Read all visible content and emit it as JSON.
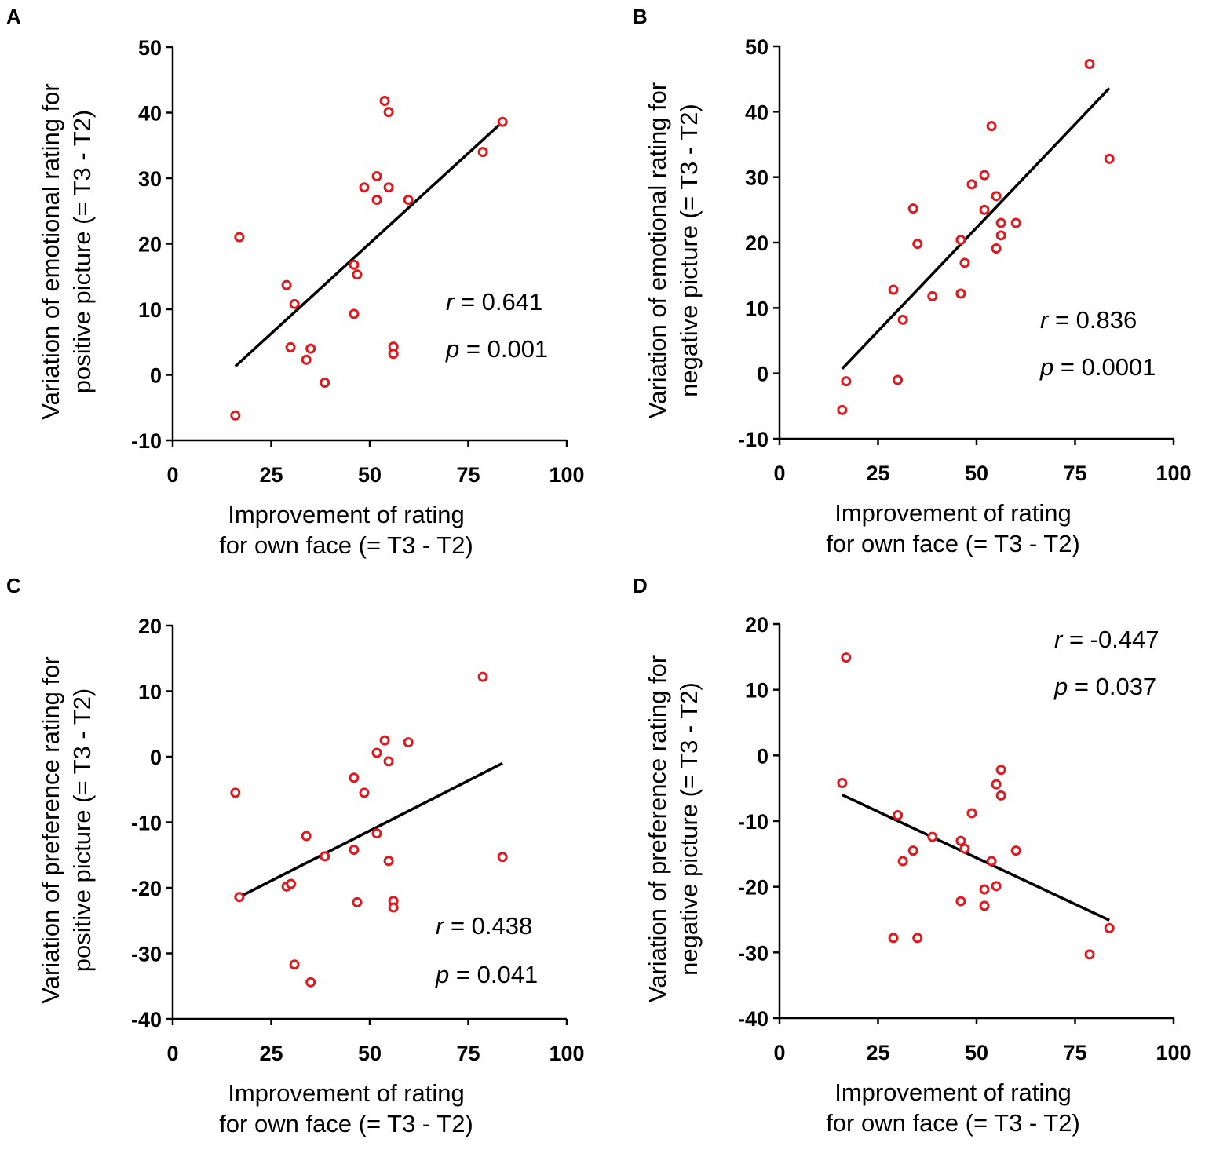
{
  "chart_data": [
    {
      "panel": "A",
      "type": "scatter",
      "xlabel": [
        "Improvement of rating",
        "for own face (= T3 - T2)"
      ],
      "ylabel": [
        "Variation of emotional rating for",
        "positive picture (= T3 - T2)"
      ],
      "xlim": [
        0,
        100
      ],
      "ylim": [
        -10,
        50
      ],
      "xticks": [
        0,
        25,
        50,
        75,
        100
      ],
      "yticks": [
        -10,
        0,
        10,
        20,
        30,
        40,
        50
      ],
      "points": [
        [
          15.9,
          -6.2
        ],
        [
          16.9,
          21
        ],
        [
          28.9,
          13.7
        ],
        [
          30.9,
          10.8
        ],
        [
          29.9,
          4.2
        ],
        [
          33.9,
          2.3
        ],
        [
          35,
          4
        ],
        [
          38.6,
          -1.2
        ],
        [
          46,
          16.8
        ],
        [
          46.8,
          15.3
        ],
        [
          46,
          9.3
        ],
        [
          48.6,
          28.6
        ],
        [
          51.8,
          30.3
        ],
        [
          51.8,
          26.7
        ],
        [
          53.8,
          41.8
        ],
        [
          54.8,
          40.1
        ],
        [
          54.8,
          28.6
        ],
        [
          56,
          4.3
        ],
        [
          56,
          3.2
        ],
        [
          59.8,
          26.7
        ],
        [
          78.7,
          34
        ],
        [
          83.7,
          38.6
        ]
      ],
      "fit_line": [
        [
          15.9,
          1.3
        ],
        [
          83.7,
          38.6
        ]
      ],
      "r": "0.641",
      "p": "0.001",
      "stat_pos": "right-middle"
    },
    {
      "panel": "B",
      "type": "scatter",
      "xlabel": [
        "Improvement of rating",
        "for own face (= T3 - T2)"
      ],
      "ylabel": [
        "Variation of emotional rating for",
        "negative picture (= T3 - T2)"
      ],
      "xlim": [
        0,
        100
      ],
      "ylim": [
        -10,
        50
      ],
      "xticks": [
        0,
        25,
        50,
        75,
        100
      ],
      "yticks": [
        -10,
        0,
        10,
        20,
        30,
        40,
        50
      ],
      "points": [
        [
          15.9,
          -5.6
        ],
        [
          16.9,
          -1.2
        ],
        [
          28.9,
          12.8
        ],
        [
          30,
          -1
        ],
        [
          31.3,
          8.2
        ],
        [
          33.9,
          25.2
        ],
        [
          35,
          19.8
        ],
        [
          38.8,
          11.8
        ],
        [
          46,
          20.4
        ],
        [
          46,
          12.2
        ],
        [
          47,
          16.9
        ],
        [
          48.8,
          28.9
        ],
        [
          52,
          30.3
        ],
        [
          52,
          25
        ],
        [
          53.8,
          37.8
        ],
        [
          55,
          27.1
        ],
        [
          55,
          19.1
        ],
        [
          56.2,
          23
        ],
        [
          56.2,
          21.1
        ],
        [
          60,
          23
        ],
        [
          78.7,
          47.3
        ],
        [
          83.7,
          32.8
        ]
      ],
      "fit_line": [
        [
          15.9,
          0.7
        ],
        [
          83.7,
          43.6
        ]
      ],
      "r": "0.836",
      "p": "0.0001",
      "stat_pos": "right-middle"
    },
    {
      "panel": "C",
      "type": "scatter",
      "xlabel": [
        "Improvement of rating",
        "for own face (= T3 - T2)"
      ],
      "ylabel": [
        "Variation of preference rating for",
        "positive picture (= T3 - T2)"
      ],
      "xlim": [
        0,
        100
      ],
      "ylim": [
        -40,
        20
      ],
      "xticks": [
        0,
        25,
        50,
        75,
        100
      ],
      "yticks": [
        -40,
        -30,
        -20,
        -10,
        0,
        10,
        20
      ],
      "points": [
        [
          15.9,
          -5.5
        ],
        [
          16.9,
          -21.4
        ],
        [
          28.9,
          -19.8
        ],
        [
          30,
          -19.4
        ],
        [
          30.9,
          -31.7
        ],
        [
          33.9,
          -12.1
        ],
        [
          35,
          -34.4
        ],
        [
          38.6,
          -15.2
        ],
        [
          46,
          -3.2
        ],
        [
          46,
          -14.2
        ],
        [
          46.8,
          -22.2
        ],
        [
          48.6,
          -5.5
        ],
        [
          51.8,
          0.6
        ],
        [
          51.8,
          -11.7
        ],
        [
          53.8,
          2.5
        ],
        [
          54.8,
          -0.7
        ],
        [
          54.8,
          -15.9
        ],
        [
          56,
          -22
        ],
        [
          56,
          -23
        ],
        [
          59.8,
          2.2
        ],
        [
          78.7,
          12.2
        ],
        [
          83.7,
          -15.3
        ]
      ],
      "fit_line": [
        [
          16.9,
          -21.4
        ],
        [
          83.7,
          -1.0
        ]
      ],
      "r": "0.438",
      "p": "0.041",
      "stat_pos": "bottom-right"
    },
    {
      "panel": "D",
      "type": "scatter",
      "xlabel": [
        "Improvement of rating",
        "for own face (= T3 - T2)"
      ],
      "ylabel": [
        "Variation of preference rating for",
        "negative picture (= T3 - T2)"
      ],
      "xlim": [
        0,
        100
      ],
      "ylim": [
        -40,
        20
      ],
      "xticks": [
        0,
        25,
        50,
        75,
        100
      ],
      "yticks": [
        -40,
        -30,
        -20,
        -10,
        0,
        10,
        20
      ],
      "points": [
        [
          15.9,
          -4.2
        ],
        [
          16.9,
          14.9
        ],
        [
          28.9,
          -27.8
        ],
        [
          30,
          -9.1
        ],
        [
          31.3,
          -16.1
        ],
        [
          33.9,
          -14.5
        ],
        [
          35,
          -27.8
        ],
        [
          38.8,
          -12.4
        ],
        [
          46,
          -13
        ],
        [
          46,
          -22.2
        ],
        [
          47,
          -14.2
        ],
        [
          48.8,
          -8.8
        ],
        [
          52,
          -20.4
        ],
        [
          52,
          -22.9
        ],
        [
          53.8,
          -16.1
        ],
        [
          55,
          -19.9
        ],
        [
          55,
          -4.4
        ],
        [
          56.2,
          -2.2
        ],
        [
          56.2,
          -6.1
        ],
        [
          60,
          -14.5
        ],
        [
          78.7,
          -30.3
        ],
        [
          83.7,
          -26.3
        ]
      ],
      "fit_line": [
        [
          15.9,
          -6.0
        ],
        [
          83.7,
          -25.1
        ]
      ],
      "r": "-0.447",
      "p": "0.037",
      "stat_pos": "top-right"
    }
  ],
  "stat_labels": {
    "r": "r",
    "p": "p",
    "eq": " = "
  },
  "colors": {
    "marker": "#e0191f",
    "line": "#000000",
    "axis": "#000000"
  }
}
